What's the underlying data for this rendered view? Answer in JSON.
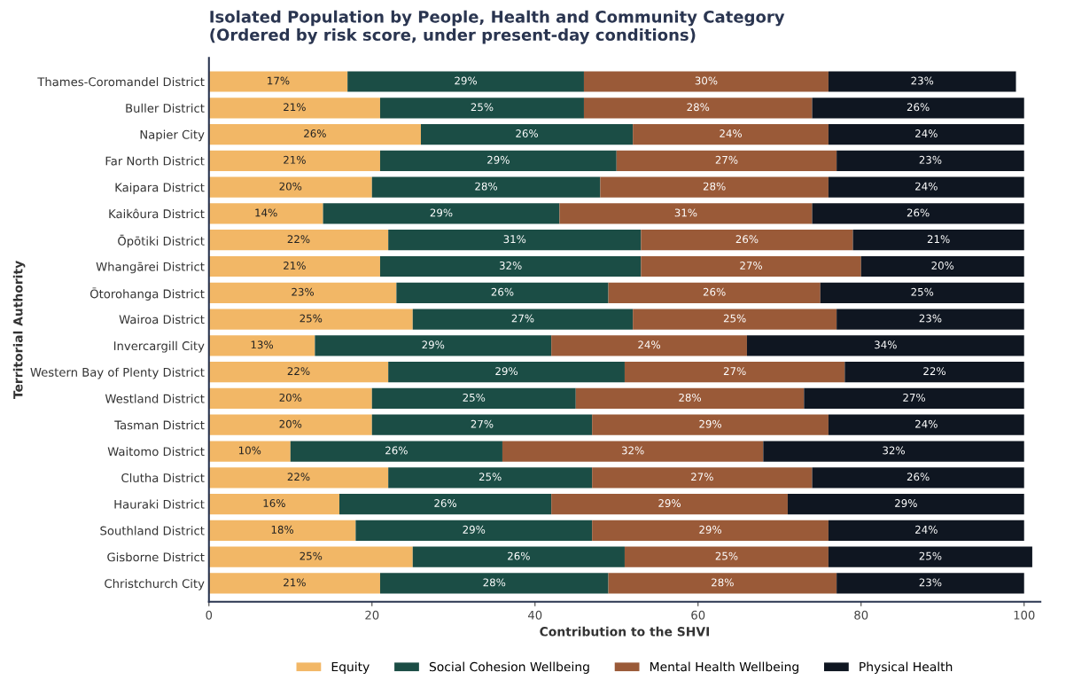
{
  "chart_data": {
    "type": "bar",
    "orientation": "horizontal",
    "stacked": true,
    "title": "Isolated Population by People, Health and Community Category\n(Ordered by risk score, under present-day conditions)",
    "xlabel": "Contribution to the SHVI",
    "ylabel": "Territorial Authority",
    "categories": [
      "Thames-Coromandel District",
      "Buller District",
      "Napier City",
      "Far North District",
      "Kaipara District",
      "Kaikôura District",
      "Ōpōtiki District",
      "Whangārei District",
      "Ōtorohanga District",
      "Wairoa District",
      "Invercargill City",
      "Western Bay of Plenty District",
      "Westland District",
      "Tasman District",
      "Waitomo District",
      "Clutha District",
      "Hauraki District",
      "Southland District",
      "Gisborne District",
      "Christchurch City"
    ],
    "series": [
      {
        "name": "Equity",
        "color": "#f2b766",
        "values": [
          17,
          21,
          26,
          21,
          20,
          14,
          22,
          21,
          23,
          25,
          13,
          22,
          20,
          20,
          10,
          22,
          16,
          18,
          25,
          21
        ],
        "value_labels": [
          "17%",
          "21%",
          "26%",
          "21%",
          "20%",
          "14%",
          "22%",
          "21%",
          "23%",
          "25%",
          "13%",
          "22%",
          "20%",
          "20%",
          "10%",
          "22%",
          "16%",
          "18%",
          "25%",
          "21%"
        ]
      },
      {
        "name": "Social Cohesion Wellbeing",
        "color": "#1b4d45",
        "values": [
          29,
          25,
          26,
          29,
          28,
          29,
          31,
          32,
          26,
          27,
          29,
          29,
          25,
          27,
          26,
          25,
          26,
          29,
          26,
          28
        ],
        "value_labels": [
          "29%",
          "25%",
          "26%",
          "29%",
          "28%",
          "29%",
          "31%",
          "32%",
          "26%",
          "27%",
          "29%",
          "29%",
          "25%",
          "27%",
          "26%",
          "25%",
          "26%",
          "29%",
          "26%",
          "28%"
        ]
      },
      {
        "name": "Mental Health Wellbeing",
        "color": "#9a5a38",
        "values": [
          30,
          28,
          24,
          27,
          28,
          31,
          26,
          27,
          26,
          25,
          24,
          27,
          28,
          29,
          32,
          27,
          29,
          29,
          25,
          28
        ],
        "value_labels": [
          "30%",
          "28%",
          "24%",
          "27%",
          "28%",
          "31%",
          "26%",
          "27%",
          "26%",
          "25%",
          "24%",
          "27%",
          "28%",
          "29%",
          "32%",
          "27%",
          "29%",
          "29%",
          "25%",
          "28%"
        ]
      },
      {
        "name": "Physical Health",
        "color": "#0f1621",
        "values": [
          23,
          26,
          24,
          23,
          24,
          26,
          21,
          20,
          25,
          23,
          34,
          22,
          27,
          24,
          32,
          26,
          29,
          24,
          25,
          23
        ],
        "value_labels": [
          "23%",
          "26%",
          "24%",
          "23%",
          "24%",
          "26%",
          "21%",
          "20%",
          "25%",
          "23%",
          "34%",
          "22%",
          "27%",
          "24%",
          "32%",
          "26%",
          "29%",
          "24%",
          "25%",
          "23%"
        ]
      }
    ],
    "xlim": [
      0,
      102
    ],
    "xticks": [
      0,
      20,
      40,
      60,
      80,
      100
    ],
    "legend": "bottom",
    "grid": false
  }
}
